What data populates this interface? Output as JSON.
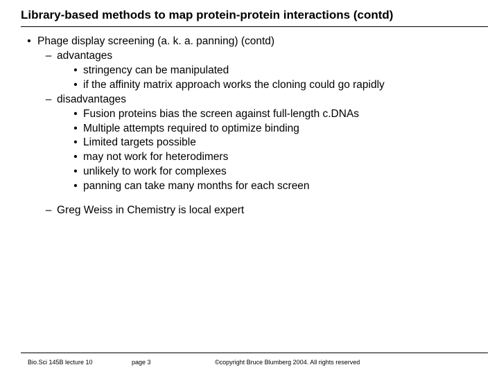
{
  "colors": {
    "background": "#ffffff",
    "text": "#000000",
    "rule": "#000000"
  },
  "typography": {
    "family": "Trebuchet MS",
    "title_size_pt": 17,
    "title_weight": "bold",
    "body_size_pt": 15.5,
    "footer_size_pt": 9
  },
  "title": "Library-based methods to map protein-protein interactions (contd)",
  "bullets": {
    "l0": {
      "marker": "•",
      "text": "Phage display screening (a. k. a. panning) (contd)"
    },
    "l1_adv": {
      "marker": "–",
      "text": "advantages"
    },
    "l2_adv_0": {
      "marker": "•",
      "text": "stringency can be manipulated"
    },
    "l2_adv_1": {
      "marker": "•",
      "text": "if the affinity matrix approach works the cloning could go rapidly"
    },
    "l1_dis": {
      "marker": "–",
      "text": "disadvantages"
    },
    "l2_dis_0": {
      "marker": "•",
      "text": "Fusion proteins bias the screen against full-length c.DNAs"
    },
    "l2_dis_1": {
      "marker": "•",
      "text": "Multiple attempts required to optimize binding"
    },
    "l2_dis_2": {
      "marker": "•",
      "text": "Limited targets possible"
    },
    "l2_dis_3": {
      "marker": "•",
      "text": "may not work for heterodimers"
    },
    "l2_dis_4": {
      "marker": "•",
      "text": "unlikely to work for complexes"
    },
    "l2_dis_5": {
      "marker": "•",
      "text": "panning can take many months for each screen"
    },
    "l1_expert": {
      "marker": "–",
      "text": "Greg Weiss in Chemistry is local expert"
    }
  },
  "footer": {
    "lecture": "Bio.Sci 145B lecture 10",
    "page": "page 3",
    "copyright": "©copyright Bruce Blumberg 2004. All rights reserved"
  }
}
